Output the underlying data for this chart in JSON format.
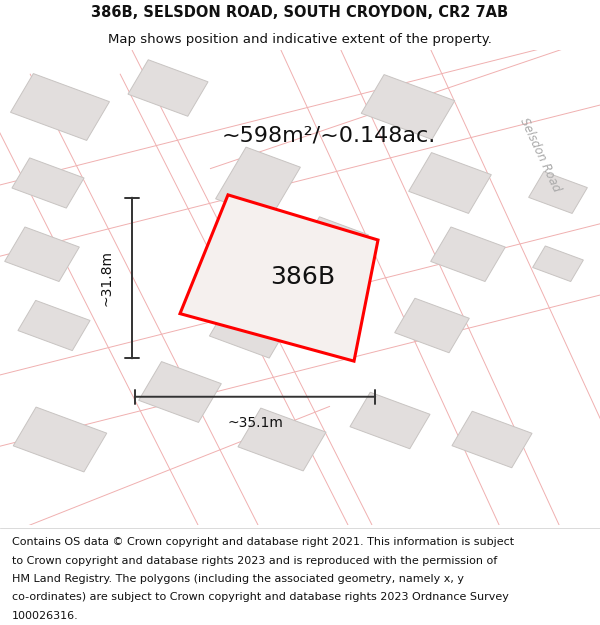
{
  "title_line1": "386B, SELSDON ROAD, SOUTH CROYDON, CR2 7AB",
  "title_line2": "Map shows position and indicative extent of the property.",
  "footer_text": "Contains OS data © Crown copyright and database right 2021. This information is subject to Crown copyright and database rights 2023 and is reproduced with the permission of HM Land Registry. The polygons (including the associated geometry, namely x, y co-ordinates) are subject to Crown copyright and database rights 2023 Ordnance Survey 100026316.",
  "area_text": "~598m²/~0.148ac.",
  "plot_label": "386B",
  "dim_height": "~31.8m",
  "dim_width": "~35.1m",
  "bg_color": "#ffffff",
  "map_bg": "#f9f6f4",
  "road_line_color": "#f0b0b0",
  "building_color": "#e2dedd",
  "building_edge_color": "#c8c4c2",
  "plot_polygon_color": "#ff0000",
  "plot_fill_color": "#f5f0ee",
  "dim_line_color": "#333333",
  "title_fontsize": 10.5,
  "subtitle_fontsize": 9.5,
  "footer_fontsize": 8.0,
  "area_fontsize": 16,
  "label_fontsize": 18,
  "dim_fontsize": 10,
  "road_label": "Selsdon Road",
  "road_label_color": "#aaaaaa"
}
